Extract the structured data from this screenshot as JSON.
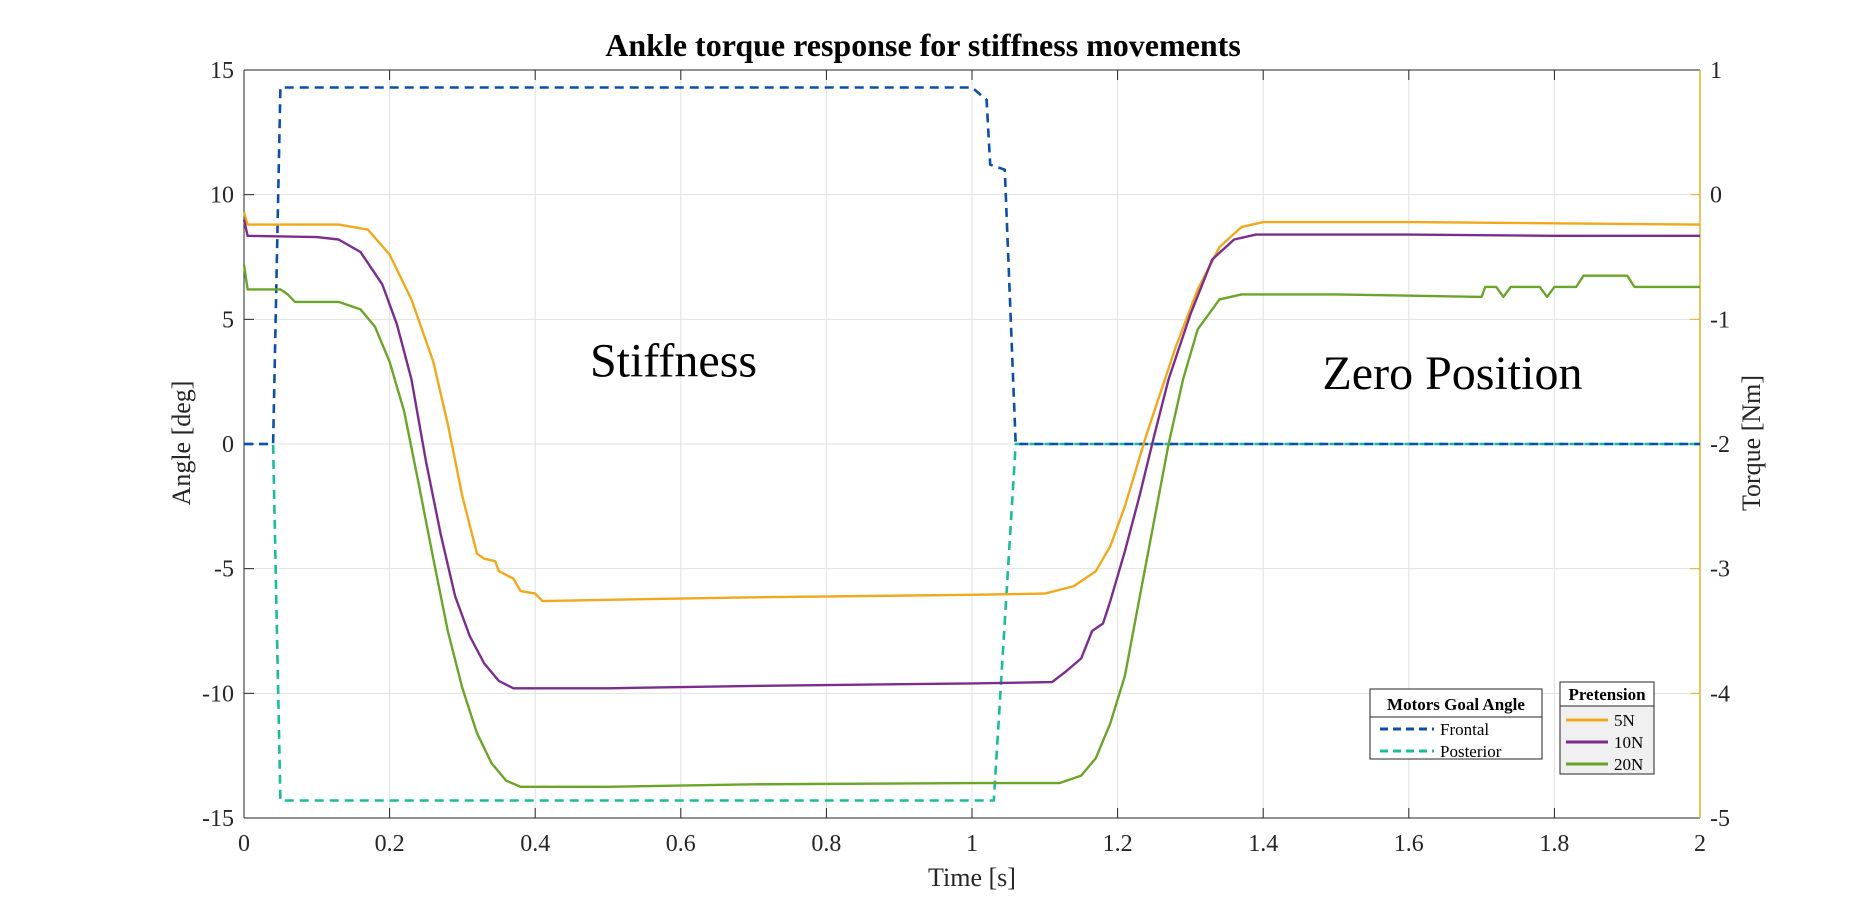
{
  "chart_data": {
    "type": "line",
    "title": "Ankle torque response for stiffness movements",
    "xlabel": "Time [s]",
    "ylabel_left": "Angle [deg]",
    "ylabel_right": "Torque [Nm]",
    "xlim": [
      0,
      2
    ],
    "ylim_left": [
      -15,
      15
    ],
    "ylim_right": [
      -5,
      1
    ],
    "grid": true,
    "x_ticks": [
      "0",
      "0.2",
      "0.4",
      "0.6",
      "0.8",
      "1",
      "1.2",
      "1.4",
      "1.6",
      "1.8",
      "2"
    ],
    "y_left_ticks": [
      "-15",
      "-10",
      "-5",
      "0",
      "5",
      "10",
      "15"
    ],
    "y_right_ticks": [
      "-5",
      "-4",
      "-3",
      "-2",
      "-1",
      "0",
      "1"
    ],
    "annotations": [
      {
        "text": "Stiffness",
        "x": 0.59,
        "y": 2.7
      },
      {
        "text": "Zero Position",
        "x": 1.66,
        "y": 2.2
      }
    ],
    "legends": [
      {
        "title": "Motors Goal Angle",
        "placement": "bottom-right",
        "entries": [
          "Frontal",
          "Posterior"
        ]
      },
      {
        "title": "Pretension",
        "placement": "bottom-right",
        "entries": [
          "5N",
          "10N",
          "20N"
        ]
      }
    ],
    "series": [
      {
        "name": "Frontal",
        "axis": "left",
        "style": "dashed",
        "color": "#0b4fa8",
        "points": [
          [
            0,
            0
          ],
          [
            0.04,
            0
          ],
          [
            0.05,
            14.3
          ],
          [
            1.0,
            14.3
          ],
          [
            1.02,
            13.8
          ],
          [
            1.025,
            11.2
          ],
          [
            1.045,
            11.0
          ],
          [
            1.06,
            0
          ],
          [
            2,
            0
          ]
        ]
      },
      {
        "name": "Posterior",
        "axis": "left",
        "style": "dashed",
        "color": "#1abc9c",
        "points": [
          [
            0,
            0
          ],
          [
            0.04,
            0
          ],
          [
            0.05,
            -14.3
          ],
          [
            1.03,
            -14.3
          ],
          [
            1.06,
            0
          ],
          [
            2,
            0
          ]
        ]
      },
      {
        "name": "5N",
        "axis": "left",
        "style": "solid",
        "color": "#f2a81d",
        "points": [
          [
            0,
            9.3
          ],
          [
            0.005,
            8.8
          ],
          [
            0.05,
            8.8
          ],
          [
            0.13,
            8.8
          ],
          [
            0.17,
            8.6
          ],
          [
            0.2,
            7.6
          ],
          [
            0.23,
            5.8
          ],
          [
            0.26,
            3.3
          ],
          [
            0.28,
            0.8
          ],
          [
            0.3,
            -2.1
          ],
          [
            0.32,
            -4.4
          ],
          [
            0.33,
            -4.6
          ],
          [
            0.345,
            -4.7
          ],
          [
            0.35,
            -5.1
          ],
          [
            0.37,
            -5.4
          ],
          [
            0.38,
            -5.9
          ],
          [
            0.4,
            -6.0
          ],
          [
            0.41,
            -6.3
          ],
          [
            0.5,
            -6.25
          ],
          [
            0.7,
            -6.15
          ],
          [
            1.0,
            -6.05
          ],
          [
            1.1,
            -6.0
          ],
          [
            1.14,
            -5.7
          ],
          [
            1.17,
            -5.1
          ],
          [
            1.19,
            -4.1
          ],
          [
            1.21,
            -2.5
          ],
          [
            1.24,
            0.4
          ],
          [
            1.28,
            3.9
          ],
          [
            1.31,
            6.2
          ],
          [
            1.34,
            7.9
          ],
          [
            1.37,
            8.7
          ],
          [
            1.4,
            8.9
          ],
          [
            1.6,
            8.9
          ],
          [
            1.8,
            8.85
          ],
          [
            2,
            8.8
          ]
        ]
      },
      {
        "name": "10N",
        "axis": "left",
        "style": "solid",
        "color": "#7b2d8e",
        "points": [
          [
            0,
            9.0
          ],
          [
            0.005,
            8.35
          ],
          [
            0.1,
            8.3
          ],
          [
            0.13,
            8.2
          ],
          [
            0.16,
            7.7
          ],
          [
            0.19,
            6.4
          ],
          [
            0.21,
            4.8
          ],
          [
            0.23,
            2.6
          ],
          [
            0.25,
            -0.7
          ],
          [
            0.27,
            -3.6
          ],
          [
            0.29,
            -6.1
          ],
          [
            0.31,
            -7.7
          ],
          [
            0.33,
            -8.8
          ],
          [
            0.35,
            -9.5
          ],
          [
            0.37,
            -9.8
          ],
          [
            0.5,
            -9.8
          ],
          [
            0.7,
            -9.7
          ],
          [
            1.0,
            -9.6
          ],
          [
            1.11,
            -9.55
          ],
          [
            1.13,
            -9.1
          ],
          [
            1.15,
            -8.6
          ],
          [
            1.165,
            -7.5
          ],
          [
            1.18,
            -7.2
          ],
          [
            1.19,
            -6.3
          ],
          [
            1.21,
            -4.3
          ],
          [
            1.23,
            -2.1
          ],
          [
            1.25,
            0.3
          ],
          [
            1.27,
            2.6
          ],
          [
            1.3,
            5.2
          ],
          [
            1.33,
            7.4
          ],
          [
            1.36,
            8.2
          ],
          [
            1.39,
            8.4
          ],
          [
            1.6,
            8.4
          ],
          [
            1.8,
            8.35
          ],
          [
            2,
            8.35
          ]
        ]
      },
      {
        "name": "20N",
        "axis": "left",
        "style": "solid",
        "color": "#6aa52a",
        "points": [
          [
            0,
            7.2
          ],
          [
            0.005,
            6.2
          ],
          [
            0.05,
            6.2
          ],
          [
            0.06,
            6.0
          ],
          [
            0.07,
            5.7
          ],
          [
            0.13,
            5.7
          ],
          [
            0.16,
            5.4
          ],
          [
            0.18,
            4.7
          ],
          [
            0.2,
            3.3
          ],
          [
            0.22,
            1.3
          ],
          [
            0.24,
            -1.6
          ],
          [
            0.26,
            -4.6
          ],
          [
            0.28,
            -7.5
          ],
          [
            0.3,
            -9.8
          ],
          [
            0.32,
            -11.6
          ],
          [
            0.34,
            -12.8
          ],
          [
            0.36,
            -13.5
          ],
          [
            0.38,
            -13.75
          ],
          [
            0.5,
            -13.75
          ],
          [
            0.7,
            -13.65
          ],
          [
            1.0,
            -13.6
          ],
          [
            1.12,
            -13.6
          ],
          [
            1.15,
            -13.3
          ],
          [
            1.17,
            -12.6
          ],
          [
            1.19,
            -11.2
          ],
          [
            1.21,
            -9.3
          ],
          [
            1.23,
            -6.2
          ],
          [
            1.25,
            -3.1
          ],
          [
            1.27,
            0.0
          ],
          [
            1.29,
            2.6
          ],
          [
            1.31,
            4.6
          ],
          [
            1.34,
            5.8
          ],
          [
            1.37,
            6.0
          ],
          [
            1.5,
            6.0
          ],
          [
            1.7,
            5.9
          ],
          [
            1.705,
            6.3
          ],
          [
            1.72,
            6.3
          ],
          [
            1.73,
            5.9
          ],
          [
            1.74,
            6.3
          ],
          [
            1.78,
            6.3
          ],
          [
            1.79,
            5.9
          ],
          [
            1.8,
            6.3
          ],
          [
            1.83,
            6.3
          ],
          [
            1.84,
            6.75
          ],
          [
            1.9,
            6.75
          ],
          [
            1.91,
            6.3
          ],
          [
            2,
            6.3
          ]
        ]
      }
    ]
  }
}
